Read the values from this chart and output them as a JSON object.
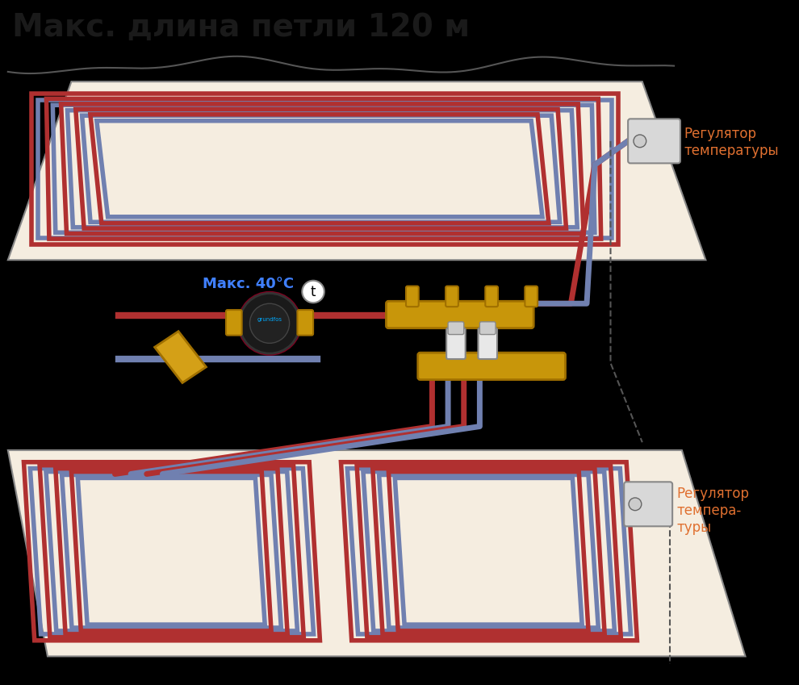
{
  "title": "Макс. длина петли 120 м",
  "title_color": "#1a1a1a",
  "title_fontsize": 28,
  "bg_color": "#000000",
  "floor1_color": "#f5ede0",
  "floor2_color": "#f5ede0",
  "pipe_hot_color": "#b03030",
  "pipe_cold_color": "#7080b0",
  "pipe_outline_color": "#555555",
  "manifold_color": "#c8960a",
  "label_temp": "Макс. 40°C",
  "label_regulator1": "Регулятор\nтемпературы",
  "label_regulator2": "Регулятор\nтемпера-\nтуры",
  "label_color": "#e07030"
}
